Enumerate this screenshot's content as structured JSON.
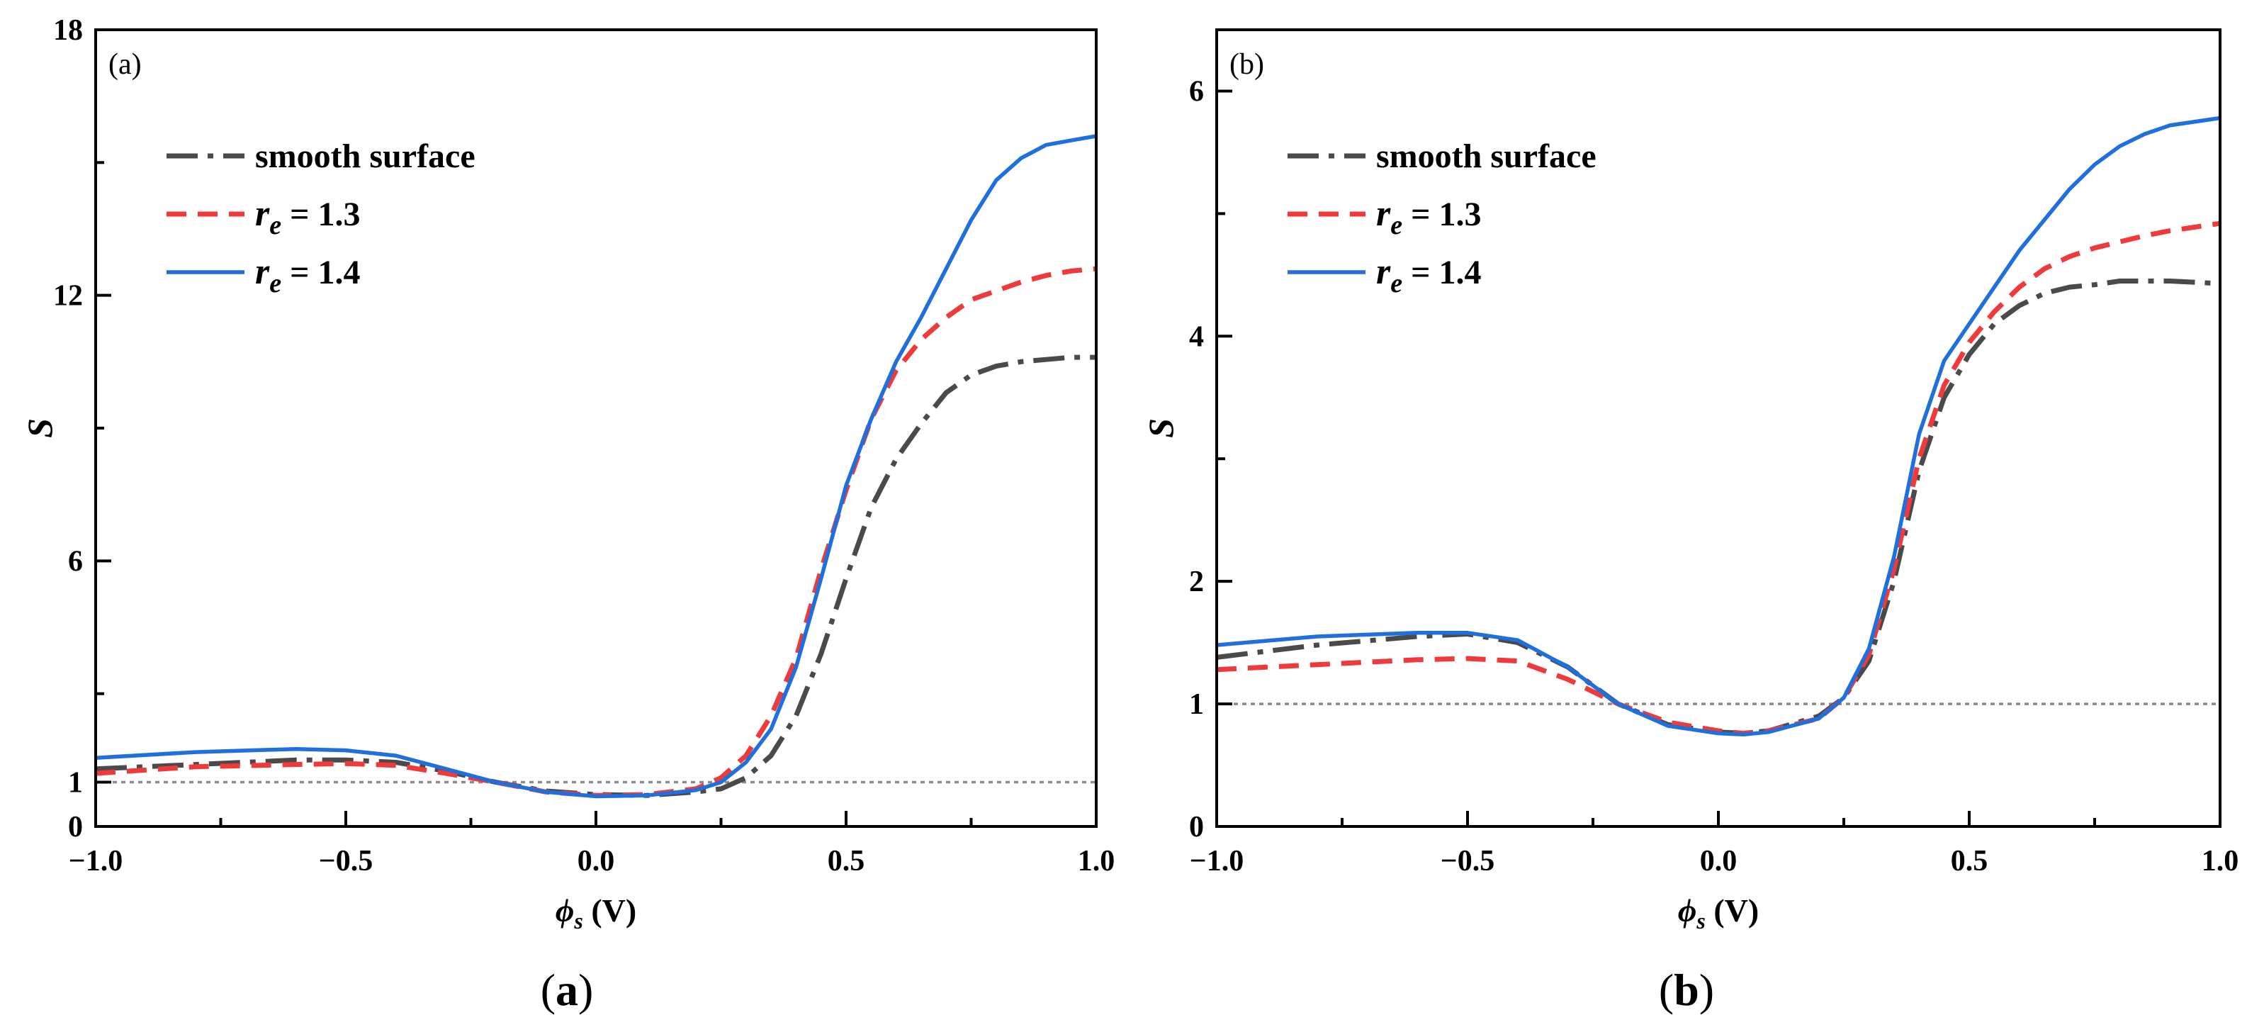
{
  "colors": {
    "smooth": "#4a4a4a",
    "re13": "#ee3a3a",
    "re14": "#1f6fdc",
    "reference": "#8a8a8a",
    "axis": "#000000"
  },
  "chart_data": [
    {
      "type": "line",
      "panel_label": "(a)",
      "caption_open": "(",
      "caption_letter": "a",
      "caption_close": ")",
      "xlabel_symbol": "ϕ",
      "xlabel_sub": "s",
      "xlabel_unit": " (V)",
      "ylabel": "S",
      "xlim": [
        -1.0,
        1.0
      ],
      "ylim": [
        0,
        18
      ],
      "xticks": [
        -1.0,
        -0.5,
        0.0,
        0.5,
        1.0
      ],
      "xtick_labels": [
        "−1.0",
        "−0.5",
        "0.0",
        "0.5",
        "1.0"
      ],
      "yticks": [
        0,
        1,
        6,
        12,
        18
      ],
      "ytick_labels": [
        "0",
        "1",
        "6",
        "12",
        "18"
      ],
      "reference_line": 1,
      "legend": [
        {
          "text": "smooth surface",
          "style": "dashdot"
        },
        {
          "prefix": "r",
          "sub": "e",
          "rest": " = 1.3",
          "style": "dashed"
        },
        {
          "prefix": "r",
          "sub": "e",
          "rest": " = 1.4",
          "style": "solid"
        }
      ],
      "series": [
        {
          "name": "smooth surface",
          "x": [
            -1.0,
            -0.8,
            -0.6,
            -0.5,
            -0.4,
            -0.3,
            -0.2,
            -0.1,
            0.0,
            0.1,
            0.2,
            0.25,
            0.3,
            0.35,
            0.4,
            0.45,
            0.5,
            0.55,
            0.6,
            0.65,
            0.7,
            0.75,
            0.8,
            0.85,
            0.9,
            0.95,
            1.0
          ],
          "y": [
            1.3,
            1.4,
            1.5,
            1.5,
            1.45,
            1.25,
            1.0,
            0.8,
            0.72,
            0.7,
            0.78,
            0.85,
            1.1,
            1.6,
            2.5,
            3.9,
            5.6,
            7.2,
            8.3,
            9.1,
            9.8,
            10.2,
            10.4,
            10.5,
            10.55,
            10.6,
            10.6
          ]
        },
        {
          "name": "re = 1.3",
          "x": [
            -1.0,
            -0.8,
            -0.6,
            -0.5,
            -0.4,
            -0.3,
            -0.2,
            -0.1,
            0.0,
            0.1,
            0.2,
            0.25,
            0.3,
            0.35,
            0.4,
            0.45,
            0.5,
            0.55,
            0.6,
            0.65,
            0.7,
            0.75,
            0.8,
            0.85,
            0.9,
            0.95,
            1.0
          ],
          "y": [
            1.2,
            1.35,
            1.4,
            1.42,
            1.38,
            1.2,
            1.0,
            0.78,
            0.7,
            0.72,
            0.85,
            1.1,
            1.6,
            2.5,
            3.8,
            5.8,
            7.6,
            9.2,
            10.3,
            11.0,
            11.5,
            11.9,
            12.1,
            12.3,
            12.45,
            12.55,
            12.6
          ]
        },
        {
          "name": "re = 1.4",
          "x": [
            -1.0,
            -0.8,
            -0.6,
            -0.5,
            -0.4,
            -0.3,
            -0.2,
            -0.1,
            0.0,
            0.1,
            0.2,
            0.25,
            0.3,
            0.35,
            0.4,
            0.45,
            0.5,
            0.55,
            0.6,
            0.65,
            0.7,
            0.75,
            0.8,
            0.85,
            0.9,
            0.95,
            1.0
          ],
          "y": [
            1.55,
            1.68,
            1.75,
            1.72,
            1.6,
            1.3,
            1.0,
            0.78,
            0.68,
            0.7,
            0.82,
            1.0,
            1.45,
            2.2,
            3.6,
            5.6,
            7.7,
            9.2,
            10.5,
            11.5,
            12.6,
            13.7,
            14.6,
            15.1,
            15.4,
            15.5,
            15.6
          ]
        }
      ]
    },
    {
      "type": "line",
      "panel_label": "(b)",
      "caption_open": "(",
      "caption_letter": "b",
      "caption_close": ")",
      "xlabel_symbol": "ϕ",
      "xlabel_sub": "s",
      "xlabel_unit": " (V)",
      "ylabel": "S",
      "xlim": [
        -1.0,
        1.0
      ],
      "ylim": [
        0,
        6.5
      ],
      "xticks": [
        -1.0,
        -0.5,
        0.0,
        0.5,
        1.0
      ],
      "xtick_labels": [
        "−1.0",
        "−0.5",
        "0.0",
        "0.5",
        "1.0"
      ],
      "yticks": [
        0,
        1,
        2,
        4,
        6
      ],
      "ytick_labels": [
        "0",
        "1",
        "2",
        "4",
        "6"
      ],
      "reference_line": 1,
      "legend": [
        {
          "text": "smooth surface",
          "style": "dashdot"
        },
        {
          "prefix": "r",
          "sub": "e",
          "rest": " = 1.3",
          "style": "dashed"
        },
        {
          "prefix": "r",
          "sub": "e",
          "rest": " = 1.4",
          "style": "solid"
        }
      ],
      "series": [
        {
          "name": "smooth surface",
          "x": [
            -1.0,
            -0.8,
            -0.6,
            -0.5,
            -0.4,
            -0.3,
            -0.2,
            -0.1,
            0.0,
            0.05,
            0.1,
            0.2,
            0.25,
            0.3,
            0.35,
            0.4,
            0.45,
            0.5,
            0.55,
            0.6,
            0.65,
            0.7,
            0.75,
            0.8,
            0.85,
            0.9,
            1.0
          ],
          "y": [
            1.38,
            1.48,
            1.55,
            1.57,
            1.5,
            1.3,
            1.0,
            0.83,
            0.77,
            0.76,
            0.78,
            0.9,
            1.05,
            1.35,
            2.0,
            2.9,
            3.5,
            3.85,
            4.1,
            4.25,
            4.35,
            4.4,
            4.42,
            4.45,
            4.45,
            4.45,
            4.43
          ]
        },
        {
          "name": "re = 1.3",
          "x": [
            -1.0,
            -0.8,
            -0.6,
            -0.5,
            -0.4,
            -0.3,
            -0.2,
            -0.1,
            0.0,
            0.05,
            0.1,
            0.2,
            0.25,
            0.3,
            0.35,
            0.4,
            0.45,
            0.5,
            0.55,
            0.6,
            0.65,
            0.7,
            0.75,
            0.8,
            0.85,
            0.9,
            1.0
          ],
          "y": [
            1.28,
            1.32,
            1.36,
            1.37,
            1.35,
            1.2,
            1.0,
            0.85,
            0.78,
            0.76,
            0.78,
            0.88,
            1.05,
            1.4,
            2.1,
            3.0,
            3.6,
            3.95,
            4.2,
            4.4,
            4.55,
            4.65,
            4.72,
            4.77,
            4.82,
            4.86,
            4.92
          ]
        },
        {
          "name": "re = 1.4",
          "x": [
            -1.0,
            -0.8,
            -0.6,
            -0.5,
            -0.4,
            -0.3,
            -0.2,
            -0.1,
            0.0,
            0.05,
            0.1,
            0.2,
            0.25,
            0.3,
            0.35,
            0.4,
            0.45,
            0.5,
            0.55,
            0.6,
            0.65,
            0.7,
            0.75,
            0.8,
            0.85,
            0.9,
            1.0
          ],
          "y": [
            1.48,
            1.55,
            1.58,
            1.58,
            1.52,
            1.3,
            1.0,
            0.82,
            0.76,
            0.75,
            0.77,
            0.88,
            1.05,
            1.45,
            2.2,
            3.2,
            3.8,
            4.1,
            4.4,
            4.7,
            4.95,
            5.2,
            5.4,
            5.55,
            5.65,
            5.72,
            5.78
          ]
        }
      ]
    }
  ]
}
